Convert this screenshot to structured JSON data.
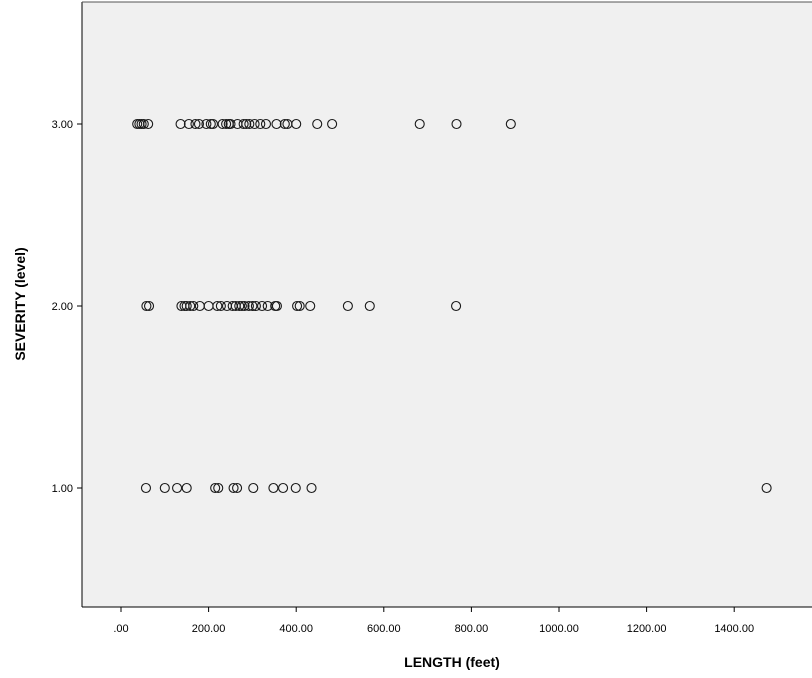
{
  "chart_data": {
    "type": "scatter",
    "title": "",
    "xlabel": "LENGTH (feet)",
    "ylabel": "SEVERITY (level)",
    "xlim": [
      -80,
      1600
    ],
    "ylim": [
      0.35,
      3.65
    ],
    "x_ticks": [
      {
        "value": 0,
        "label": ".00"
      },
      {
        "value": 200,
        "label": "200.00"
      },
      {
        "value": 400,
        "label": "400.00"
      },
      {
        "value": 600,
        "label": "600.00"
      },
      {
        "value": 800,
        "label": "800.00"
      },
      {
        "value": 1000,
        "label": "1000.00"
      },
      {
        "value": 1200,
        "label": "1200.00"
      },
      {
        "value": 1400,
        "label": "1400.00"
      }
    ],
    "y_ticks": [
      {
        "value": 1,
        "label": "1.00"
      },
      {
        "value": 2,
        "label": "2.00"
      },
      {
        "value": 3,
        "label": "3.00"
      }
    ],
    "grid": false,
    "background": "#f0f0f0",
    "marker": "open-circle",
    "series": [
      {
        "points": [
          [
            37,
            3
          ],
          [
            42,
            3
          ],
          [
            47,
            3
          ],
          [
            52,
            3
          ],
          [
            62,
            3
          ],
          [
            136,
            3
          ],
          [
            155,
            3
          ],
          [
            170,
            3
          ],
          [
            178,
            3
          ],
          [
            195,
            3
          ],
          [
            205,
            3
          ],
          [
            210,
            3
          ],
          [
            232,
            3
          ],
          [
            240,
            3
          ],
          [
            246,
            3
          ],
          [
            250,
            3
          ],
          [
            266,
            3
          ],
          [
            280,
            3
          ],
          [
            286,
            3
          ],
          [
            293,
            3
          ],
          [
            305,
            3
          ],
          [
            318,
            3
          ],
          [
            331,
            3
          ],
          [
            355,
            3
          ],
          [
            374,
            3
          ],
          [
            380,
            3
          ],
          [
            400,
            3
          ],
          [
            448,
            3
          ],
          [
            482,
            3
          ],
          [
            682,
            3
          ],
          [
            766,
            3
          ],
          [
            890,
            3
          ],
          [
            58,
            2
          ],
          [
            64,
            2
          ],
          [
            138,
            2
          ],
          [
            145,
            2
          ],
          [
            150,
            2
          ],
          [
            158,
            2
          ],
          [
            165,
            2
          ],
          [
            180,
            2
          ],
          [
            200,
            2
          ],
          [
            220,
            2
          ],
          [
            228,
            2
          ],
          [
            242,
            2
          ],
          [
            255,
            2
          ],
          [
            262,
            2
          ],
          [
            270,
            2
          ],
          [
            276,
            2
          ],
          [
            282,
            2
          ],
          [
            292,
            2
          ],
          [
            300,
            2
          ],
          [
            308,
            2
          ],
          [
            322,
            2
          ],
          [
            335,
            2
          ],
          [
            352,
            2
          ],
          [
            356,
            2
          ],
          [
            402,
            2
          ],
          [
            408,
            2
          ],
          [
            432,
            2
          ],
          [
            518,
            2
          ],
          [
            568,
            2
          ],
          [
            765,
            2
          ],
          [
            57,
            1
          ],
          [
            100,
            1
          ],
          [
            128,
            1
          ],
          [
            150,
            1
          ],
          [
            215,
            1
          ],
          [
            222,
            1
          ],
          [
            257,
            1
          ],
          [
            265,
            1
          ],
          [
            302,
            1
          ],
          [
            348,
            1
          ],
          [
            370,
            1
          ],
          [
            399,
            1
          ],
          [
            435,
            1
          ],
          [
            1474,
            1
          ]
        ]
      }
    ]
  }
}
